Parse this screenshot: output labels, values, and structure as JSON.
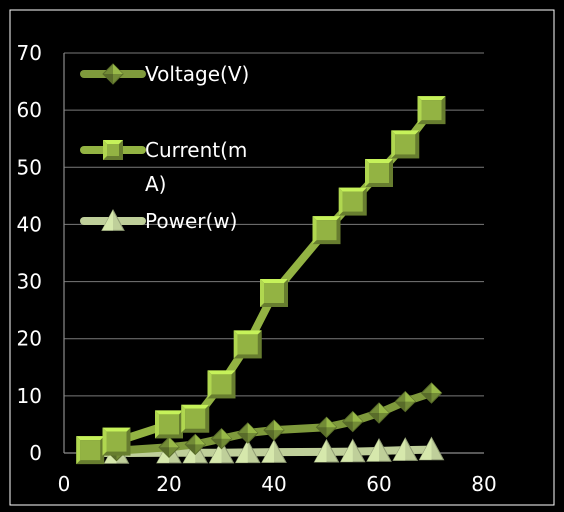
{
  "chart_data": {
    "type": "line",
    "title": "",
    "xlabel": "",
    "ylabel": "",
    "xlim": [
      0,
      80
    ],
    "ylim": [
      0,
      70
    ],
    "x_ticks": [
      "0",
      "20",
      "40",
      "60",
      "80"
    ],
    "y_ticks": [
      "0",
      "10",
      "20",
      "30",
      "40",
      "50",
      "60",
      "70"
    ],
    "grid": "horizontal",
    "legend_position": "top-left",
    "series": [
      {
        "name": "Voltage(V)",
        "legend_lines": [
          "Voltage(V)"
        ],
        "marker": "diamond",
        "color": "#7f9a3c",
        "x": [
          5,
          10,
          20,
          25,
          30,
          35,
          40,
          50,
          55,
          60,
          65,
          70
        ],
        "y": [
          0.2,
          0.4,
          1.0,
          1.5,
          2.5,
          3.5,
          4.0,
          4.5,
          5.5,
          7.0,
          9.0,
          10.5
        ]
      },
      {
        "name": "Current(mA)",
        "legend_lines": [
          "Current(m",
          "A)"
        ],
        "marker": "square",
        "color": "#93b343",
        "x": [
          5,
          10,
          20,
          25,
          30,
          35,
          40,
          50,
          55,
          60,
          65,
          70
        ],
        "y": [
          0.5,
          2,
          5,
          6,
          12,
          19,
          28,
          39,
          44,
          49,
          54,
          60
        ]
      },
      {
        "name": "Power(w)",
        "legend_lines": [
          "Power(w)"
        ],
        "marker": "triangle",
        "color": "#bfcf9a",
        "x": [
          5,
          10,
          20,
          25,
          30,
          35,
          40,
          50,
          55,
          60,
          65,
          70
        ],
        "y": [
          0,
          0,
          0.05,
          0.05,
          0.05,
          0.1,
          0.15,
          0.2,
          0.25,
          0.35,
          0.5,
          0.6
        ]
      }
    ]
  }
}
